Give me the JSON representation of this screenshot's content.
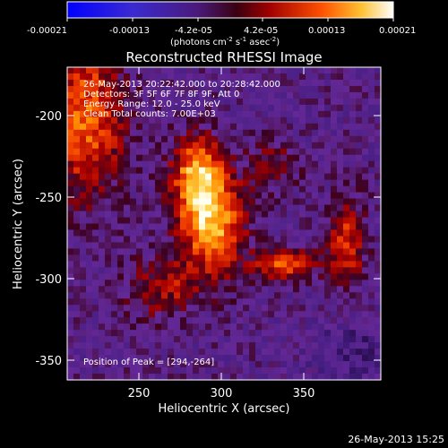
{
  "colorbar": {
    "tick_labels": [
      "-0.00021",
      "-0.00013",
      "-4.2e-05",
      "4.2e-05",
      "0.00013",
      "0.00021"
    ],
    "units_main": "(photons cm",
    "units_exp1": "-2",
    "units_mid": " s",
    "units_exp2": "-1",
    "units_tail": " asec",
    "units_exp3": "-2",
    "units_close": ")"
  },
  "title": "Reconstructed RHESSI Image",
  "info_lines": [
    "26-May-2013 20:22:42.000 to 20:28:42.000",
    "Detectors: 3F 5F 6F 7F 8F 9F, Att 0",
    "Energy Range: 12.0 - 25.0 keV",
    "Clean     Total counts: 7.00E+03"
  ],
  "peak_label": "Position of Peak = [294,-264]",
  "x_axis": {
    "label": "Heliocentric X (arcsec)",
    "ticks": [
      "250",
      "300",
      "350"
    ],
    "range": [
      208,
      396
    ]
  },
  "y_axis": {
    "label": "Heliocentric Y (arcsec)",
    "ticks": [
      "-200",
      "-250",
      "-300",
      "-350"
    ],
    "range": [
      -360,
      -182
    ]
  },
  "footer_timestamp": "26-May-2013 15:25",
  "colors": {
    "background": "#000000",
    "colormap": [
      "#0000ff",
      "#5a2a8c",
      "#7a1e5a",
      "#c00000",
      "#ff6a00",
      "#ffd24a",
      "#ffffff"
    ]
  }
}
